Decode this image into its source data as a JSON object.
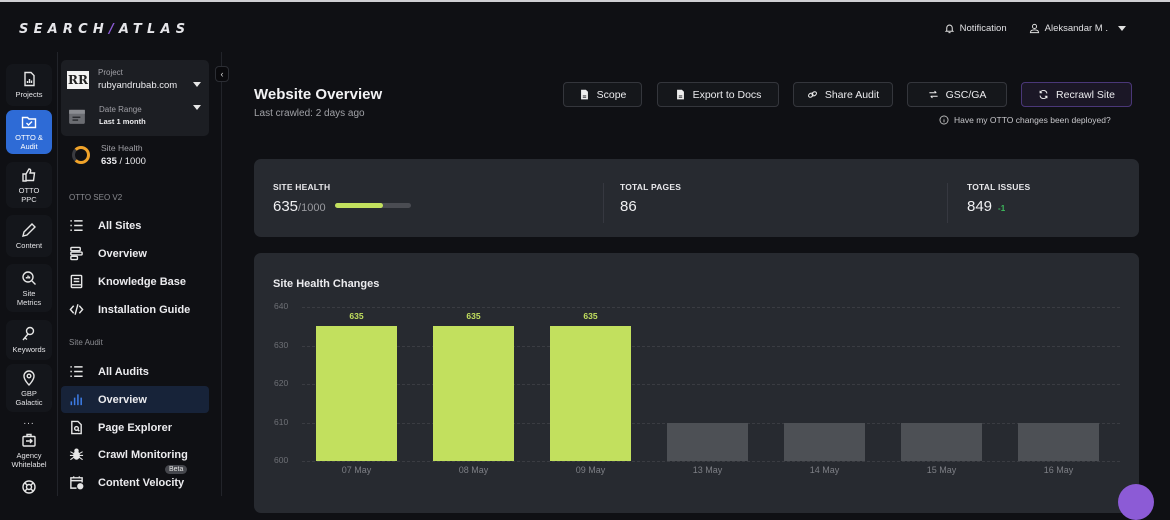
{
  "brand": {
    "logo_left": "SEARCH",
    "logo_slash": "/",
    "logo_right": "ATLAS"
  },
  "topbar": {
    "notification_label": "Notification",
    "user_name": "Aleksandar M ."
  },
  "rail": {
    "items": [
      {
        "label": "Projects",
        "icon": "projects-icon"
      },
      {
        "label": "OTTO & Audit",
        "icon": "folder-check-icon",
        "active": true
      },
      {
        "label": "OTTO PPC",
        "icon": "thumbs-up-icon"
      },
      {
        "label": "Content",
        "icon": "pencil-icon"
      },
      {
        "label": "Site Metrics",
        "icon": "search-chart-icon"
      },
      {
        "label": "Keywords",
        "icon": "key-icon"
      },
      {
        "label": "GBP Galactic",
        "icon": "map-pin-icon"
      },
      {
        "label": "Agency Whitelabel",
        "icon": "briefcase-icon"
      }
    ],
    "more": "..."
  },
  "panel": {
    "project": {
      "label": "Project",
      "value": "rubyandrubab.com",
      "logo_text": "RR"
    },
    "date_range": {
      "label": "Date Range",
      "value": "Last 1 month"
    },
    "site_health": {
      "label": "Site Health",
      "score": "635",
      "max": " / 1000"
    },
    "sections": [
      {
        "title": "OTTO SEO V2",
        "items": [
          {
            "label": "All Sites",
            "icon": "list-icon"
          },
          {
            "label": "Overview",
            "icon": "overview-icon"
          },
          {
            "label": "Knowledge Base",
            "icon": "book-icon"
          },
          {
            "label": "Installation Guide",
            "icon": "code-icon"
          }
        ]
      },
      {
        "title": "Site Audit",
        "items": [
          {
            "label": "All Audits",
            "icon": "list-icon"
          },
          {
            "label": "Overview",
            "icon": "bar-chart-icon",
            "active": true
          },
          {
            "label": "Page Explorer",
            "icon": "file-search-icon"
          },
          {
            "label": "Crawl Monitoring",
            "icon": "spider-icon"
          },
          {
            "label": "Content Velocity",
            "icon": "calendar-clock-icon",
            "badge": "Beta"
          }
        ]
      }
    ]
  },
  "header": {
    "title": "Website Overview",
    "subtitle": "Last crawled: 2 days ago",
    "buttons": {
      "scope": "Scope",
      "export": "Export to Docs",
      "share": "Share Audit",
      "gsc": "GSC/GA",
      "recrawl": "Recrawl Site"
    },
    "otto_question": "Have my OTTO changes been deployed?"
  },
  "stats": {
    "site_health": {
      "label": "SITE HEALTH",
      "value": "635",
      "max": "/1000",
      "progress_pct": 63.5
    },
    "total_pages": {
      "label": "TOTAL PAGES",
      "value": "86"
    },
    "total_issues": {
      "label": "TOTAL ISSUES",
      "value": "849",
      "delta": "-1"
    }
  },
  "colors": {
    "accent_green": "#c2e05e",
    "rail_active": "#2e6bd6",
    "brand_purple": "#8c5bd6",
    "delta_green": "#3dbb5c",
    "empty_bar": "#4d5055"
  },
  "chart_data": {
    "type": "bar",
    "title": "Site Health Changes",
    "categories": [
      "07 May",
      "08 May",
      "09 May",
      "13 May",
      "14 May",
      "15 May",
      "16 May"
    ],
    "values": [
      635,
      635,
      635,
      null,
      null,
      null,
      null
    ],
    "value_labels": [
      "635",
      "635",
      "635",
      "",
      "",
      "",
      ""
    ],
    "placeholder_bar_top": 610,
    "yticks": [
      "640",
      "630",
      "620",
      "610",
      "600"
    ],
    "ylim": [
      600,
      640
    ],
    "xlabel": "",
    "ylabel": "",
    "grid": true
  }
}
